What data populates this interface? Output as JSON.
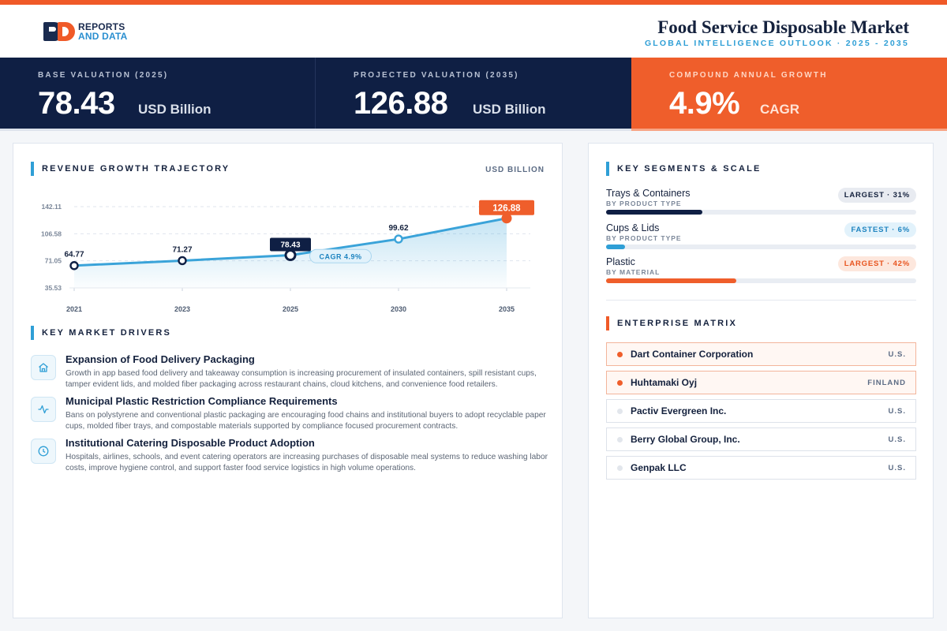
{
  "header": {
    "logo_line1": "REPORTS",
    "logo_line2": "AND DATA",
    "title": "Food Service Disposable Market",
    "subtitle": "GLOBAL INTELLIGENCE OUTLOOK  ·  2025 - 2035"
  },
  "kpis": [
    {
      "label": "BASE VALUATION (2025)",
      "value": "78.43",
      "unit": "USD Billion"
    },
    {
      "label": "PROJECTED VALUATION (2035)",
      "value": "126.88",
      "unit": "USD Billion"
    },
    {
      "label": "COMPOUND ANNUAL GROWTH",
      "value": "4.9%",
      "unit": "CAGR"
    }
  ],
  "revenue": {
    "section_title": "REVENUE GROWTH TRAJECTORY",
    "unit_label": "USD BILLION"
  },
  "chart_data": {
    "type": "line",
    "x": [
      "2021",
      "2023",
      "2025",
      "2030",
      "2035"
    ],
    "series": [
      {
        "values": [
          64.77,
          71.27,
          78.43,
          99.62,
          126.88
        ]
      }
    ],
    "data_labels": [
      "64.77",
      "71.27",
      "78.43",
      "99.62",
      "126.88"
    ],
    "y_ticks": [
      "142.11",
      "106.58",
      "71.05",
      "35.53"
    ],
    "ylim": [
      35.53,
      142.11
    ],
    "annotation": "CAGR 4.9%",
    "grid": true,
    "area_fill": true
  },
  "drivers": {
    "section_title": "KEY MARKET DRIVERS",
    "items": [
      {
        "icon": "home-icon",
        "title": "Expansion of Food Delivery Packaging",
        "desc": "Growth in app based food delivery and takeaway consumption is increasing procurement of insulated containers, spill resistant cups, tamper evident lids, and molded fiber packaging across restaurant chains, cloud kitchens, and convenience food retailers."
      },
      {
        "icon": "activity-icon",
        "title": "Municipal Plastic Restriction Compliance Requirements",
        "desc": "Bans on polystyrene and conventional plastic packaging are encouraging food chains and institutional buyers to adopt recyclable paper cups, molded fiber trays, and compostable materials supported by compliance focused procurement contracts."
      },
      {
        "icon": "clock-icon",
        "title": "Institutional Catering Disposable Product Adoption",
        "desc": "Hospitals, airlines, schools, and event catering operators are increasing purchases of disposable meal systems to reduce washing labor costs, improve hygiene control, and support faster food service logistics in high volume operations."
      }
    ]
  },
  "segments": {
    "section_title": "KEY SEGMENTS & SCALE",
    "items": [
      {
        "name": "Trays & Containers",
        "sub": "BY PRODUCT TYPE",
        "badge": "LARGEST · 31%",
        "share": 31,
        "color": "#0f1f44"
      },
      {
        "name": "Cups & Lids",
        "sub": "BY PRODUCT TYPE",
        "badge": "FASTEST · 6%",
        "share": 6,
        "color": "#2f9fd6"
      },
      {
        "name": "Plastic",
        "sub": "BY MATERIAL",
        "badge": "LARGEST · 42%",
        "share": 42,
        "color": "#ef5e2b"
      }
    ]
  },
  "enterprise": {
    "section_title": "ENTERPRISE MATRIX",
    "items": [
      {
        "name": "Dart Container Corporation",
        "country": "U.S.",
        "highlight": true
      },
      {
        "name": "Huhtamaki Oyj",
        "country": "FINLAND",
        "highlight": true
      },
      {
        "name": "Pactiv Evergreen Inc.",
        "country": "U.S.",
        "highlight": false
      },
      {
        "name": "Berry Global Group, Inc.",
        "country": "U.S.",
        "highlight": false
      },
      {
        "name": "Genpak LLC",
        "country": "U.S.",
        "highlight": false
      }
    ]
  }
}
